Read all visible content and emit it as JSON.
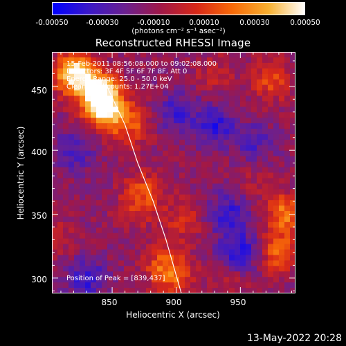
{
  "colorbar": {
    "ticks": [
      "-0.00050",
      "-0.00030",
      "-0.00010",
      "0.00010",
      "0.00030",
      "0.00050"
    ],
    "units": "(photons cm⁻² s⁻¹ asec⁻²)",
    "stops": [
      "#0000ff",
      "#3a18c8",
      "#6a2090",
      "#a01848",
      "#d82818",
      "#f86a08",
      "#f8b030",
      "#ffffff"
    ]
  },
  "chart_data": {
    "type": "heatmap",
    "title": "Reconstructed RHESSI Image",
    "xlabel": "Heliocentric X (arcsec)",
    "ylabel": "Heliocentric Y (arcsec)",
    "xlim": [
      803,
      993
    ],
    "ylim": [
      288,
      477
    ],
    "xticks": [
      "850",
      "900",
      "950"
    ],
    "yticks": [
      "450",
      "400",
      "350",
      "300"
    ],
    "clim": [
      -0.0005,
      0.0005
    ],
    "blobs": [
      {
        "x": 820,
        "y": 460,
        "value": 0.0006
      },
      {
        "x": 840,
        "y": 445,
        "value": 0.0006
      },
      {
        "x": 845,
        "y": 430,
        "value": 0.00045
      },
      {
        "x": 865,
        "y": 420,
        "value": 0.00025
      },
      {
        "x": 875,
        "y": 370,
        "value": 0.0002
      },
      {
        "x": 870,
        "y": 355,
        "value": 0.00015
      },
      {
        "x": 890,
        "y": 310,
        "value": 0.00025
      },
      {
        "x": 900,
        "y": 300,
        "value": 0.0002
      },
      {
        "x": 905,
        "y": 345,
        "value": 0.00018
      },
      {
        "x": 975,
        "y": 455,
        "value": 0.00025
      },
      {
        "x": 985,
        "y": 350,
        "value": 0.00035
      },
      {
        "x": 980,
        "y": 320,
        "value": 0.0003
      },
      {
        "x": 930,
        "y": 460,
        "value": 0.00012
      },
      {
        "x": 805,
        "y": 330,
        "value": 0.00012
      },
      {
        "x": 960,
        "y": 380,
        "value": 8e-05
      },
      {
        "x": 945,
        "y": 300,
        "value": 0.0001
      },
      {
        "x": 900,
        "y": 430,
        "value": -0.0002
      },
      {
        "x": 930,
        "y": 420,
        "value": -0.00025
      },
      {
        "x": 820,
        "y": 400,
        "value": -0.0002
      },
      {
        "x": 830,
        "y": 300,
        "value": -0.00025
      },
      {
        "x": 940,
        "y": 350,
        "value": -0.00025
      },
      {
        "x": 950,
        "y": 320,
        "value": -0.0003
      },
      {
        "x": 960,
        "y": 405,
        "value": -0.00018
      }
    ],
    "limb_curve": [
      {
        "x": 845,
        "y": 452
      },
      {
        "x": 860,
        "y": 420
      },
      {
        "x": 870,
        "y": 390
      },
      {
        "x": 882,
        "y": 360
      },
      {
        "x": 892,
        "y": 330
      },
      {
        "x": 904,
        "y": 288
      }
    ]
  },
  "annotations": [
    "15-Feb-2011 08:56:08.000 to 09:02:08.000",
    "Detectors: 3F 4F 5F 6F 7F 8F, Att 0",
    "Energy Range: 25.0 - 50.0 keV",
    "Clean    Total counts: 1.27E+04"
  ],
  "peak_label": "Position of Peak = [839,437]",
  "timestamp": "13-May-2022 20:28"
}
